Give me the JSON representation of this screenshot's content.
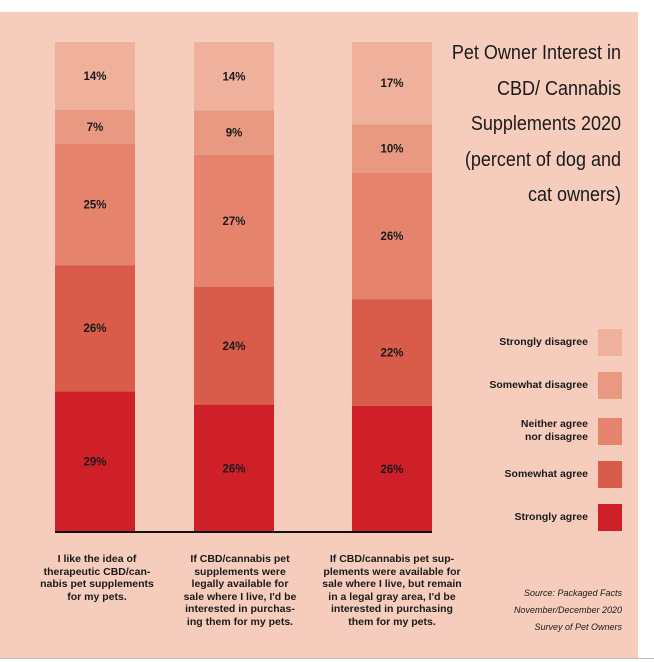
{
  "chart_data": {
    "type": "stacked-bar",
    "title": "Pet Owner Interest in CBD/ Cannabis Supplements 2020 (percent of dog and cat owners)",
    "categories": [
      "I like the idea of therapeutic CBD/can- nabis pet supplements for my pets.",
      "If CBD/cannabis pet supplements were legally available for sale where I live, I'd be interested in purchas- ing them for my pets.",
      "If CBD/cannabis pet sup- plements were available for sale where I live, but remain in a legal gray area, I'd be interested in purchasing them for my pets."
    ],
    "series": [
      {
        "name": "Strongly agree",
        "color": "#cf1f29",
        "values": [
          29,
          26,
          26
        ]
      },
      {
        "name": "Somewhat agree",
        "color": "#d95b4a",
        "values": [
          26,
          24,
          22
        ]
      },
      {
        "name": "Neither agree nor disagree",
        "color": "#e5836d",
        "values": [
          25,
          27,
          26
        ]
      },
      {
        "name": "Somewhat disagree",
        "color": "#e99881",
        "values": [
          7,
          9,
          10
        ]
      },
      {
        "name": "Strongly disagree",
        "color": "#f0b19c",
        "values": [
          14,
          14,
          17
        ]
      }
    ],
    "value_format": "{v}%",
    "legend_position": "right",
    "ylim": [
      0,
      100
    ]
  },
  "legend": [
    {
      "lines": [
        "Strongly disagree"
      ],
      "color": "#f0b19c"
    },
    {
      "lines": [
        "Somewhat disagree"
      ],
      "color": "#e99881"
    },
    {
      "lines": [
        "Neither agree",
        "nor disagree"
      ],
      "color": "#e5836d"
    },
    {
      "lines": [
        "Somewhat agree"
      ],
      "color": "#d95b4a"
    },
    {
      "lines": [
        "Strongly agree"
      ],
      "color": "#cf1f29"
    }
  ],
  "category_labels": [
    [
      "I like the idea of",
      "therapeutic CBD/can-",
      "nabis pet supplements",
      "for my pets."
    ],
    [
      "If CBD/cannabis pet",
      "supplements were",
      "legally available for",
      "sale where I live, I'd be",
      "interested in purchas-",
      "ing them for my pets."
    ],
    [
      "If CBD/cannabis pet sup-",
      "plements were available for",
      "sale where I live, but remain",
      "in a legal gray area, I'd be",
      "interested in purchasing",
      "them for my pets."
    ]
  ],
  "source": {
    "lines": [
      "Source: Packaged Facts",
      "November/December 2020",
      "Survey of Pet Owners"
    ]
  }
}
